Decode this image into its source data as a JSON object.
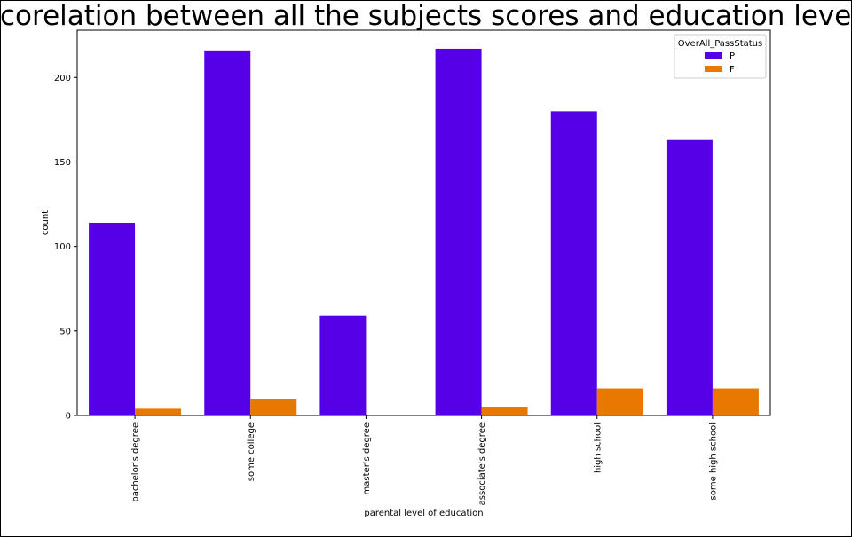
{
  "chart_data": {
    "type": "bar",
    "title": "corelation between all the subjects scores and education level",
    "xlabel": "parental level of education",
    "ylabel": "count",
    "categories": [
      "bachelor's degree",
      "some college",
      "master's degree",
      "associate's degree",
      "high school",
      "some high school"
    ],
    "series": [
      {
        "name": "P",
        "color": "#5600e8",
        "values": [
          114,
          216,
          59,
          217,
          180,
          163
        ]
      },
      {
        "name": "F",
        "color": "#e87800",
        "values": [
          4,
          10,
          0,
          5,
          16,
          16
        ]
      }
    ],
    "ylim": [
      0,
      228
    ],
    "yticks": [
      0,
      50,
      100,
      150,
      200
    ],
    "legend": {
      "title": "OverAll_PassStatus",
      "placement": "top-right"
    },
    "grid": false
  }
}
